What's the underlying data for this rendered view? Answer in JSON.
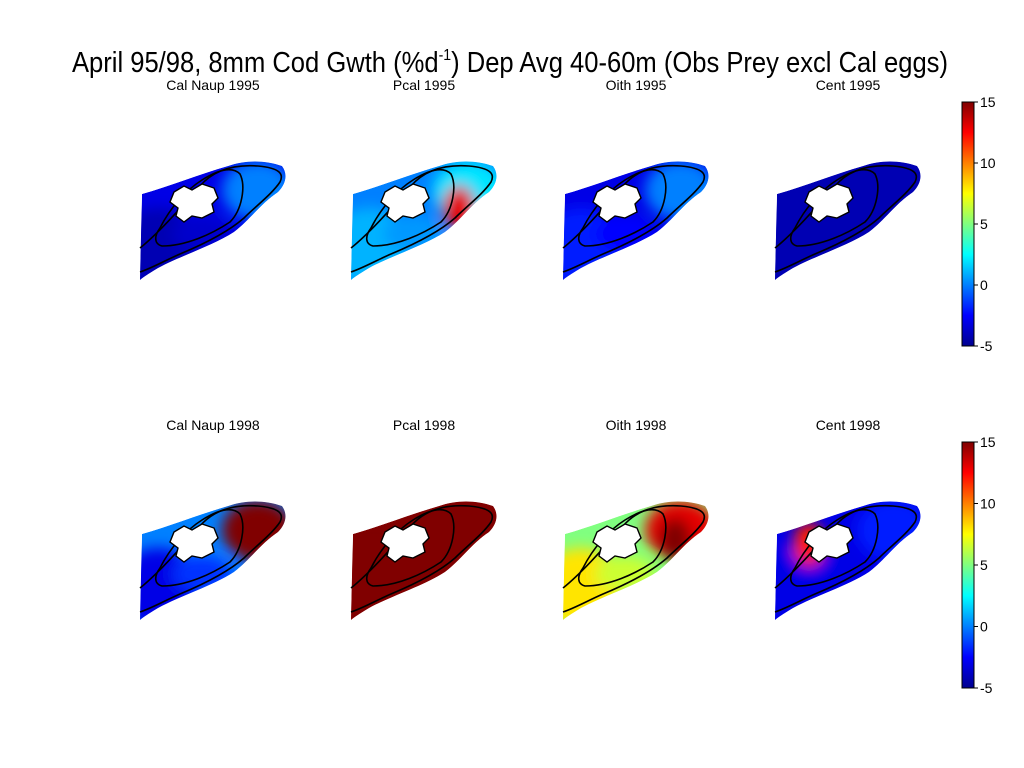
{
  "figure": {
    "title_pre": "April 95/98, 8mm Cod Gwth (%d",
    "title_sup": "-1",
    "title_post": ") Dep Avg 40-60m (Obs Prey excl Cal eggs)"
  },
  "chart_data": {
    "type": "heatmap",
    "colormap": "jet",
    "clim": [
      -5,
      15
    ],
    "colorbar_ticks": [
      "15",
      "10",
      "5",
      "0",
      "-5"
    ],
    "panels": [
      {
        "title": "Cal Naup 1995",
        "year": 1995,
        "prey": "Cal Naup",
        "east_value": 0,
        "center_value": -3,
        "west_value": -4,
        "hotspot_value": null
      },
      {
        "title": "Pcal 1995",
        "year": 1995,
        "prey": "Pcal",
        "east_value": 2,
        "center_value": 0,
        "west_value": 1,
        "hotspot_value": 13
      },
      {
        "title": "Oith 1995",
        "year": 1995,
        "prey": "Oith",
        "east_value": 0,
        "center_value": -3,
        "west_value": -2,
        "hotspot_value": null
      },
      {
        "title": "Cent 1995",
        "year": 1995,
        "prey": "Cent",
        "east_value": -4,
        "center_value": -4,
        "west_value": -4,
        "hotspot_value": null
      },
      {
        "title": "Cal Naup 1998",
        "year": 1998,
        "prey": "Cal Naup",
        "east_value": 15,
        "center_value": 0,
        "west_value": -3,
        "hotspot_value": 15
      },
      {
        "title": "Pcal 1998",
        "year": 1998,
        "prey": "Pcal",
        "east_value": 15,
        "center_value": 15,
        "west_value": 15,
        "hotspot_value": 15
      },
      {
        "title": "Oith 1998",
        "year": 1998,
        "prey": "Oith",
        "east_value": 13,
        "center_value": 5,
        "west_value": 8,
        "hotspot_value": 15
      },
      {
        "title": "Cent 1998",
        "year": 1998,
        "prey": "Cent",
        "east_value": -2,
        "center_value": -3,
        "west_value": -3,
        "hotspot_value": 12
      }
    ]
  }
}
